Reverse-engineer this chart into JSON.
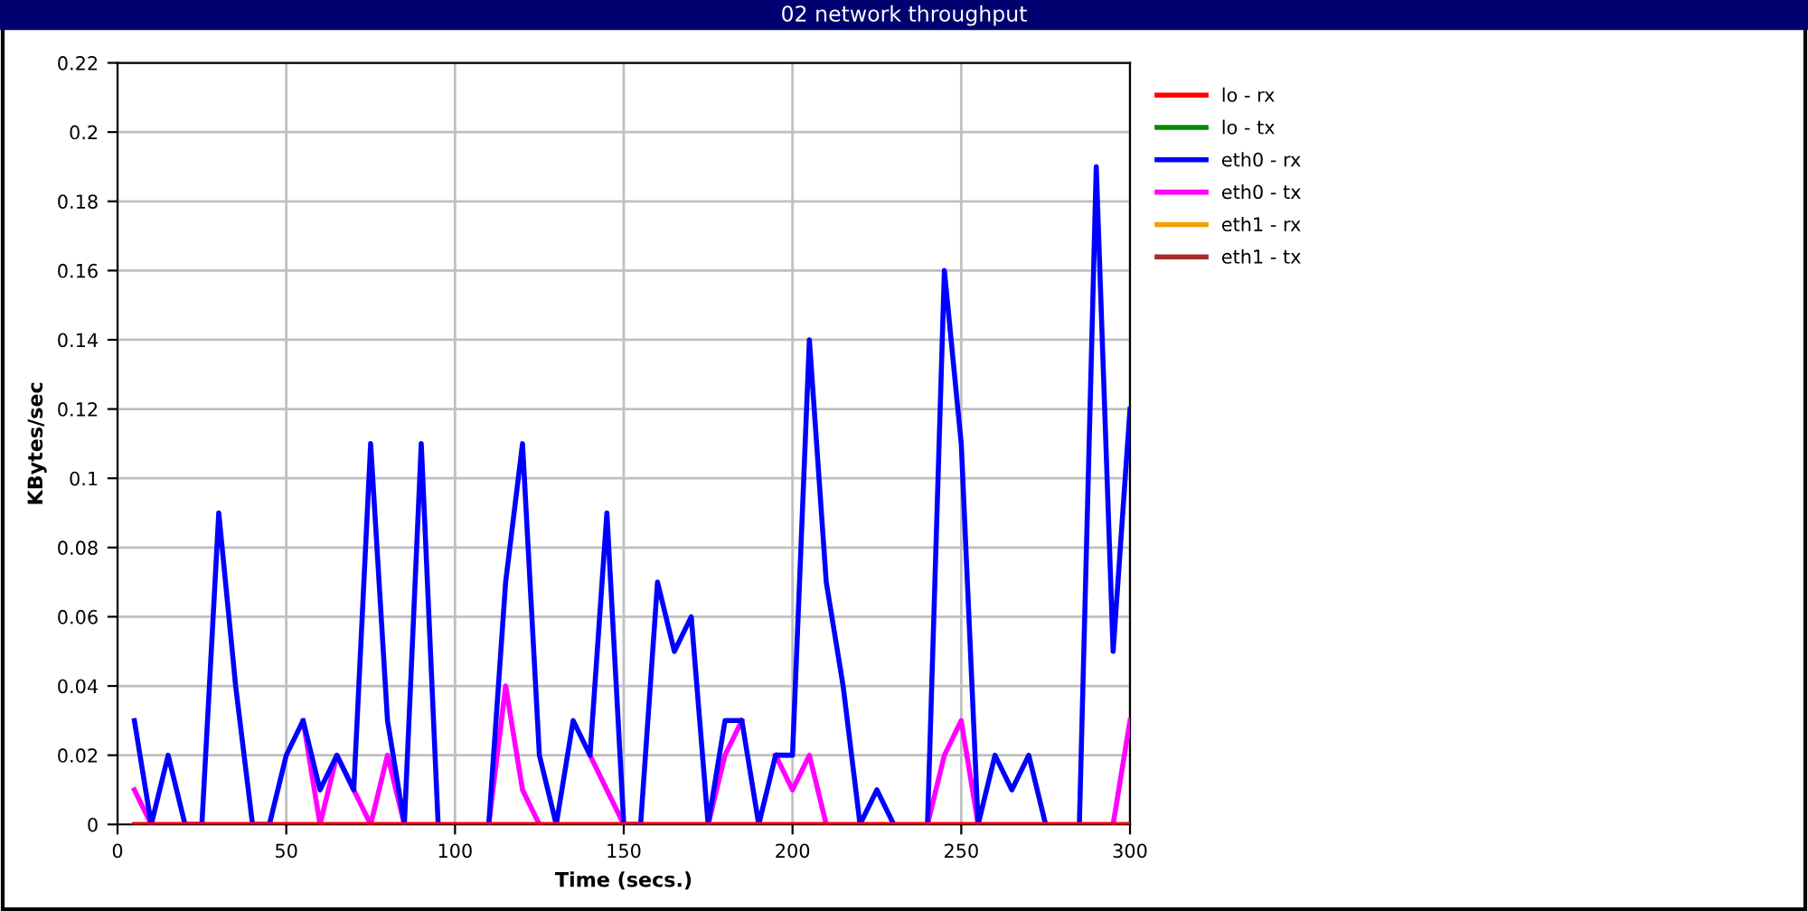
{
  "chart_data": {
    "type": "line",
    "title": "02 network throughput",
    "xlabel": "Time (secs.)",
    "ylabel": "KBytes/sec",
    "x": [
      5,
      10,
      15,
      20,
      25,
      30,
      35,
      40,
      45,
      50,
      55,
      60,
      65,
      70,
      75,
      80,
      85,
      90,
      95,
      100,
      105,
      110,
      115,
      120,
      125,
      130,
      135,
      140,
      145,
      150,
      155,
      160,
      165,
      170,
      175,
      180,
      185,
      190,
      195,
      200,
      205,
      210,
      215,
      220,
      225,
      230,
      235,
      240,
      245,
      250,
      255,
      260,
      265,
      270,
      275,
      280,
      285,
      290,
      295,
      300
    ],
    "series": [
      {
        "name": "lo - rx",
        "color": "#ff0000",
        "values": [
          0,
          0,
          0,
          0,
          0,
          0,
          0,
          0,
          0,
          0,
          0,
          0,
          0,
          0,
          0,
          0,
          0,
          0,
          0,
          0,
          0,
          0,
          0,
          0,
          0,
          0,
          0,
          0,
          0,
          0,
          0,
          0,
          0,
          0,
          0,
          0,
          0,
          0,
          0,
          0,
          0,
          0,
          0,
          0,
          0,
          0,
          0,
          0,
          0,
          0,
          0,
          0,
          0,
          0,
          0,
          0,
          0,
          0,
          0,
          0
        ]
      },
      {
        "name": "lo - tx",
        "color": "#008c00",
        "values": [
          null,
          null,
          null,
          null,
          null,
          null,
          null,
          null,
          null,
          null,
          null,
          null,
          null,
          null,
          null,
          null,
          null,
          null,
          null,
          null,
          null,
          null,
          null,
          null,
          null,
          null,
          null,
          null,
          null,
          null,
          null,
          null,
          null,
          null,
          null,
          null,
          null,
          null,
          null,
          null,
          null,
          null,
          null,
          null,
          null,
          null,
          null,
          null,
          null,
          null,
          null,
          null,
          null,
          null,
          null,
          null,
          null,
          null,
          null,
          null
        ]
      },
      {
        "name": "eth0 - rx",
        "color": "#0000ff",
        "values": [
          0.03,
          0,
          0.02,
          0,
          0,
          0.09,
          0.04,
          0,
          0,
          0.02,
          0.03,
          0.01,
          0.02,
          0.01,
          0.11,
          0.03,
          0,
          0.11,
          0,
          null,
          null,
          0,
          0.07,
          0.11,
          0.02,
          0,
          0.03,
          0.02,
          0.09,
          0,
          0,
          0.07,
          0.05,
          0.06,
          0,
          0.03,
          0.03,
          0,
          0.02,
          0.02,
          0.14,
          0.07,
          0.04,
          0,
          0.01,
          0,
          null,
          0,
          0.16,
          0.11,
          0,
          0.02,
          0.01,
          0.02,
          0,
          null,
          0,
          0.19,
          0.05,
          0.12
        ]
      },
      {
        "name": "eth0 - tx",
        "color": "#ff00ff",
        "values": [
          0.01,
          0,
          null,
          null,
          null,
          null,
          null,
          null,
          null,
          null,
          0.03,
          0,
          0.02,
          0.01,
          0,
          0.02,
          0,
          null,
          null,
          null,
          null,
          0,
          0.04,
          0.01,
          0,
          null,
          null,
          0.02,
          0.01,
          0,
          null,
          null,
          null,
          null,
          0,
          0.02,
          0.03,
          null,
          0.02,
          0.01,
          0.02,
          0,
          null,
          null,
          null,
          null,
          null,
          0,
          0.02,
          0.03,
          0,
          null,
          null,
          null,
          null,
          null,
          null,
          null,
          0,
          0.03
        ]
      },
      {
        "name": "eth1 - rx",
        "color": "#f0a000",
        "values": [
          null,
          null,
          null,
          null,
          null,
          null,
          null,
          null,
          null,
          null,
          null,
          null,
          null,
          null,
          null,
          null,
          null,
          null,
          null,
          null,
          null,
          null,
          null,
          null,
          null,
          null,
          null,
          null,
          null,
          null,
          null,
          null,
          null,
          null,
          null,
          null,
          null,
          null,
          null,
          null,
          null,
          null,
          null,
          null,
          null,
          null,
          null,
          null,
          null,
          null,
          null,
          null,
          null,
          null,
          null,
          null,
          null,
          null,
          null,
          null
        ]
      },
      {
        "name": "eth1 - tx",
        "color": "#a52a2a",
        "values": [
          null,
          null,
          null,
          null,
          null,
          null,
          null,
          null,
          null,
          null,
          null,
          null,
          null,
          null,
          null,
          null,
          null,
          null,
          null,
          null,
          null,
          null,
          null,
          null,
          null,
          null,
          null,
          null,
          null,
          null,
          null,
          null,
          null,
          null,
          null,
          null,
          null,
          null,
          null,
          null,
          null,
          null,
          null,
          null,
          null,
          null,
          null,
          null,
          null,
          null,
          null,
          null,
          null,
          null,
          null,
          null,
          null,
          null,
          null,
          null
        ]
      }
    ],
    "xlim": [
      0,
      300
    ],
    "xticks": [
      0,
      50,
      100,
      150,
      200,
      250,
      300
    ],
    "ylim": [
      0,
      0.22
    ],
    "yticks": [
      0,
      0.02,
      0.04,
      0.06,
      0.08,
      0.1,
      0.12,
      0.14,
      0.16,
      0.18,
      0.2,
      0.22
    ],
    "grid": true,
    "legend": "right",
    "marker": "none",
    "line_style": "solid"
  }
}
